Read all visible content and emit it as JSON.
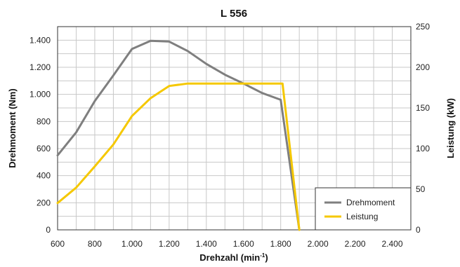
{
  "chart_data": {
    "type": "line",
    "title": "L 556",
    "xlabel_main": "Drehzahl (min",
    "xlabel_sup": "-1",
    "xlabel_end": ")",
    "ylabel_left": "Drehmoment (Nm)",
    "ylabel_right": "Leistung (kW)",
    "xlim": [
      600,
      2500
    ],
    "ylim_left": [
      0,
      1500
    ],
    "ylim_right": [
      0,
      250
    ],
    "x_ticks": [
      600,
      800,
      1000,
      1200,
      1400,
      1600,
      1800,
      2000,
      2200,
      2400
    ],
    "x_tick_labels": [
      "600",
      "800",
      "1.000",
      "1.200",
      "1.400",
      "1.600",
      "1.800",
      "2.000",
      "2.200",
      "2.400"
    ],
    "y_left_ticks": [
      0,
      200,
      400,
      600,
      800,
      1000,
      1200,
      1400
    ],
    "y_left_tick_labels": [
      "0",
      "200",
      "400",
      "600",
      "800",
      "1.000",
      "1.200",
      "1.400"
    ],
    "y_right_ticks": [
      0,
      50,
      100,
      150,
      200,
      250
    ],
    "y_right_tick_labels": [
      "0",
      "50",
      "100",
      "150",
      "200",
      "250"
    ],
    "grid": true,
    "legend_position": "bottom-right",
    "series": [
      {
        "name": "Drehmoment",
        "axis": "left",
        "color": "#7f7f7f",
        "points": [
          [
            600,
            550
          ],
          [
            700,
            720
          ],
          [
            800,
            950
          ],
          [
            900,
            1140
          ],
          [
            1000,
            1335
          ],
          [
            1100,
            1395
          ],
          [
            1200,
            1390
          ],
          [
            1300,
            1320
          ],
          [
            1400,
            1225
          ],
          [
            1500,
            1145
          ],
          [
            1600,
            1080
          ],
          [
            1700,
            1010
          ],
          [
            1800,
            960
          ],
          [
            1900,
            0
          ]
        ]
      },
      {
        "name": "Leistung",
        "axis": "right",
        "color": "#f5c800",
        "points": [
          [
            600,
            33
          ],
          [
            700,
            52
          ],
          [
            800,
            78
          ],
          [
            900,
            105
          ],
          [
            1000,
            140
          ],
          [
            1100,
            162
          ],
          [
            1200,
            177
          ],
          [
            1300,
            180
          ],
          [
            1400,
            180
          ],
          [
            1500,
            180
          ],
          [
            1600,
            180
          ],
          [
            1700,
            180
          ],
          [
            1810,
            180
          ],
          [
            1900,
            0
          ]
        ]
      }
    ]
  }
}
